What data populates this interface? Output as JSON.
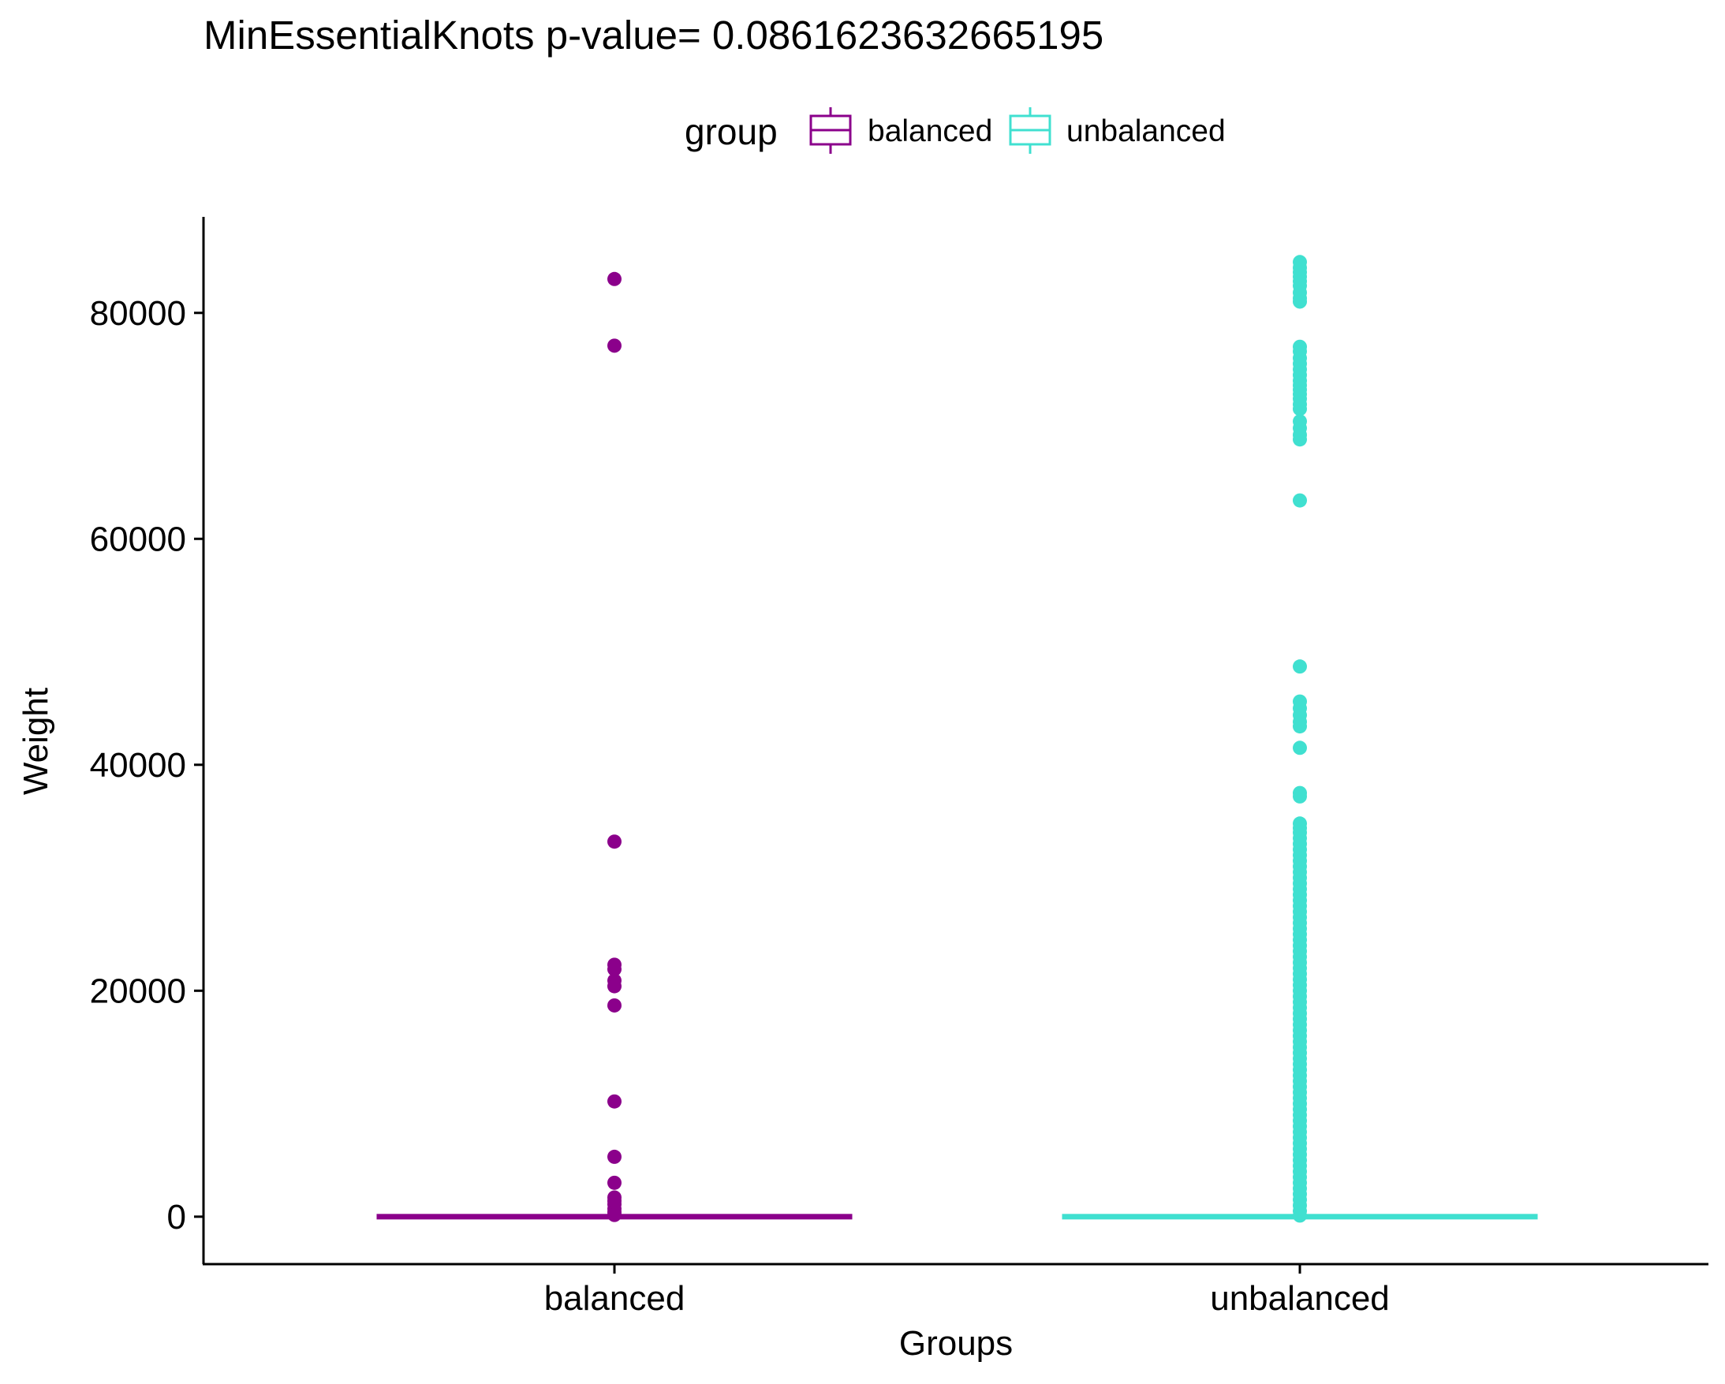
{
  "chart_data": {
    "type": "box",
    "title": "MinEssentialKnots  p-value= 0.0861623632665195",
    "xlabel": "Groups",
    "ylabel": "Weight",
    "ylim": [
      -4200,
      88500
    ],
    "yticks": [
      0,
      20000,
      40000,
      60000,
      80000
    ],
    "ytick_labels": [
      "0",
      "20000",
      "40000",
      "60000",
      "80000"
    ],
    "categories": [
      "balanced",
      "unbalanced"
    ],
    "legend": {
      "title": "group",
      "position": "top",
      "entries": [
        "balanced",
        "unbalanced"
      ]
    },
    "grid": false,
    "colors": {
      "balanced": "#8B008B",
      "unbalanced": "#40E0D0"
    },
    "series": [
      {
        "name": "balanced",
        "category": "balanced",
        "box": {
          "min": 0,
          "q1": 0,
          "median": 0,
          "q3": 0,
          "max": 0
        },
        "outliers": [
          83000,
          77100,
          33200,
          22300,
          21900,
          20900,
          20400,
          18700,
          10200,
          5300,
          3000,
          1700,
          1400,
          1100,
          700,
          400,
          150
        ]
      },
      {
        "name": "unbalanced",
        "category": "unbalanced",
        "box": {
          "min": 0,
          "q1": 0,
          "median": 0,
          "q3": 0,
          "max": 0
        },
        "outliers": [
          84500,
          84000,
          83600,
          83200,
          82800,
          82400,
          81800,
          81300,
          81000,
          77000,
          76600,
          76000,
          75500,
          75000,
          74500,
          74000,
          73600,
          73200,
          72800,
          72400,
          71900,
          71500,
          70400,
          69800,
          69200,
          68800,
          63400,
          48700,
          45600,
          45000,
          44400,
          43800,
          43400,
          41500,
          37500,
          37200,
          34800,
          34400,
          34000,
          33500,
          33000,
          32500,
          32000,
          31500,
          31000,
          30500,
          30000,
          29500,
          29000,
          28500,
          28000,
          27500,
          27000,
          26500,
          26000,
          25500,
          25000,
          24500,
          24000,
          23500,
          23000,
          22500,
          22000,
          21500,
          21000,
          20500,
          20000,
          19500,
          19000,
          18500,
          18000,
          17500,
          17000,
          16500,
          16000,
          15500,
          15000,
          14500,
          14000,
          13500,
          13000,
          12500,
          12000,
          11500,
          11000,
          10500,
          10000,
          9500,
          9000,
          8500,
          8000,
          7500,
          7000,
          6500,
          6000,
          5500,
          5000,
          4500,
          4000,
          3500,
          3000,
          2500,
          2000,
          1500,
          1000,
          500,
          100
        ]
      }
    ]
  }
}
